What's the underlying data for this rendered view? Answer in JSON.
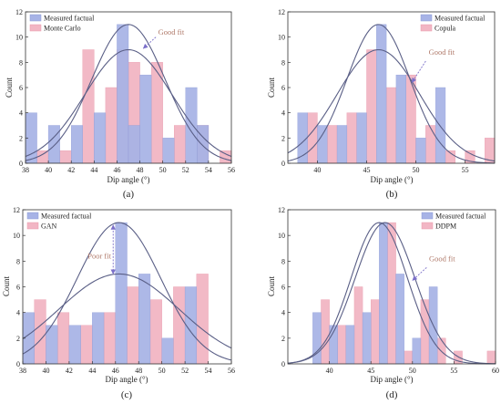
{
  "colors": {
    "measured": "#a7b3e6",
    "model": "#f2b6c4",
    "measured_edge": "#8e9bd6",
    "model_edge": "#e99aab",
    "curve": "#5a5f86",
    "arrow": "#7b6fc9",
    "anno_text": "#b07a6a"
  },
  "chart_data": [
    {
      "type": "bar",
      "panel_label": "(a)",
      "xlabel": "Dip angle (°)",
      "ylabel": "Count",
      "xlim": [
        38,
        56
      ],
      "ylim": [
        0,
        12
      ],
      "xticks": [
        38,
        40,
        42,
        44,
        46,
        48,
        50,
        52,
        54,
        56
      ],
      "yticks": [
        0,
        2,
        4,
        6,
        8,
        10,
        12
      ],
      "bin_width": 1,
      "legend": [
        "Measured factual",
        "Monte Carlo"
      ],
      "legend_position": "top-left",
      "series": [
        {
          "name": "Measured factual",
          "role": "measured",
          "x": [
            38.5,
            40.5,
            42.5,
            44.5,
            46.5,
            47.5,
            48.5,
            50.5,
            52.5,
            53.5
          ],
          "values": [
            4,
            3,
            3,
            4,
            11,
            3,
            7,
            2,
            6,
            3
          ]
        },
        {
          "name": "Monte Carlo",
          "role": "model",
          "x": [
            39.5,
            41.5,
            43.5,
            45.5,
            46.5,
            47.5,
            49.5,
            51.5,
            53.5,
            55.5
          ],
          "values": [
            1,
            1,
            9,
            6,
            9,
            8,
            8,
            3,
            3,
            1
          ]
        }
      ],
      "curves": [
        {
          "mean": 47,
          "sd": 3.2,
          "peak": 11
        },
        {
          "mean": 47,
          "sd": 3.8,
          "peak": 9
        }
      ],
      "annotation": {
        "text": "Good fit",
        "text_at": [
          49.6,
          10.2
        ],
        "arrow_from": [
          49.4,
          10.0
        ],
        "arrow_to": [
          48.3,
          9.1
        ]
      }
    },
    {
      "type": "bar",
      "panel_label": "(b)",
      "xlabel": "Dip angle (°)",
      "ylabel": "Count",
      "xlim": [
        37,
        58
      ],
      "ylim": [
        0,
        12
      ],
      "xticks": [
        40,
        45,
        50,
        55
      ],
      "yticks": [
        0,
        2,
        4,
        6,
        8,
        10,
        12
      ],
      "bin_width": 1,
      "legend": [
        "Measured factual",
        "Copula"
      ],
      "legend_position": "top-right",
      "series": [
        {
          "name": "Measured factual",
          "role": "measured",
          "x": [
            38.5,
            40.5,
            42.5,
            44.5,
            46.5,
            48.5,
            50.5,
            52.5
          ],
          "values": [
            4,
            3,
            3,
            4,
            11,
            7,
            2,
            6
          ]
        },
        {
          "name": "Copula",
          "role": "model",
          "x": [
            39.5,
            41.5,
            43.5,
            45.5,
            47.5,
            49.5,
            51.5,
            53.5,
            55.5,
            57.5
          ],
          "values": [
            4,
            3,
            4,
            9,
            6,
            7,
            3,
            1,
            1,
            2
          ]
        }
      ],
      "curves": [
        {
          "mean": 46.2,
          "sd": 3.2,
          "peak": 11
        },
        {
          "mean": 46.2,
          "sd": 4.2,
          "peak": 9
        }
      ],
      "annotation": {
        "text": "Good fit",
        "text_at": [
          51.3,
          8.6
        ],
        "arrow_from": [
          51.0,
          8.1
        ],
        "arrow_to": [
          49.6,
          6.4
        ]
      }
    },
    {
      "type": "bar",
      "panel_label": "(c)",
      "xlabel": "Dip angle (°)",
      "ylabel": "Count",
      "xlim": [
        38,
        56
      ],
      "ylim": [
        0,
        12
      ],
      "xticks": [
        38,
        40,
        42,
        44,
        46,
        48,
        50,
        52,
        54,
        56
      ],
      "yticks": [
        0,
        2,
        4,
        6,
        8,
        10,
        12
      ],
      "bin_width": 1,
      "legend": [
        "Measured factual",
        "GAN"
      ],
      "legend_position": "top-left",
      "series": [
        {
          "name": "Measured factual",
          "role": "measured",
          "x": [
            38.5,
            40.5,
            42.5,
            44.5,
            46.5,
            48.5,
            50.5,
            52.5
          ],
          "values": [
            4,
            3,
            3,
            4,
            11,
            7,
            2,
            6
          ]
        },
        {
          "name": "GAN",
          "role": "model",
          "x": [
            39.5,
            41.5,
            43.5,
            45.5,
            47.5,
            49.5,
            51.5,
            53.5
          ],
          "values": [
            5,
            4,
            3,
            4,
            6,
            5,
            6,
            7
          ]
        }
      ],
      "curves": [
        {
          "mean": 46.3,
          "sd": 3.6,
          "peak": 11
        },
        {
          "mean": 46.3,
          "sd": 5.2,
          "peak": 7
        }
      ],
      "annotation": {
        "text": "Poor fit",
        "text_at": [
          43.6,
          8.2
        ],
        "arrow_x": 45.8,
        "arrow_y": [
          7.0,
          10.8
        ]
      }
    },
    {
      "type": "bar",
      "panel_label": "(d)",
      "xlabel": "Dip angle (°)",
      "ylabel": "Count",
      "xlim": [
        35,
        60
      ],
      "ylim": [
        0,
        12
      ],
      "xticks": [
        40,
        45,
        50,
        55,
        60
      ],
      "yticks": [
        0,
        2,
        4,
        6,
        8,
        10,
        12
      ],
      "bin_width": 1,
      "legend": [
        "Measured factual",
        "DDPM"
      ],
      "legend_position": "top-right",
      "series": [
        {
          "name": "Measured factual",
          "role": "measured",
          "x": [
            38.5,
            40.5,
            42.5,
            44.5,
            46.5,
            48.5,
            50.5,
            52.5
          ],
          "values": [
            4,
            3,
            3,
            4,
            11,
            7,
            2,
            6
          ]
        },
        {
          "name": "DDPM",
          "role": "model",
          "x": [
            39.5,
            41.5,
            43.5,
            45.5,
            47.5,
            49.5,
            51.5,
            53.5,
            55.5,
            59.5
          ],
          "values": [
            5,
            3,
            6,
            5,
            11,
            1,
            5,
            2,
            1,
            1
          ]
        }
      ],
      "curves": [
        {
          "mean": 46.0,
          "sd": 3.4,
          "peak": 11
        },
        {
          "mean": 46.7,
          "sd": 3.6,
          "peak": 11
        }
      ],
      "annotation": {
        "text": "Good fit",
        "text_at": [
          52.0,
          8.0
        ],
        "arrow_from": [
          51.7,
          7.5
        ],
        "arrow_to": [
          50.0,
          6.5
        ]
      }
    }
  ]
}
